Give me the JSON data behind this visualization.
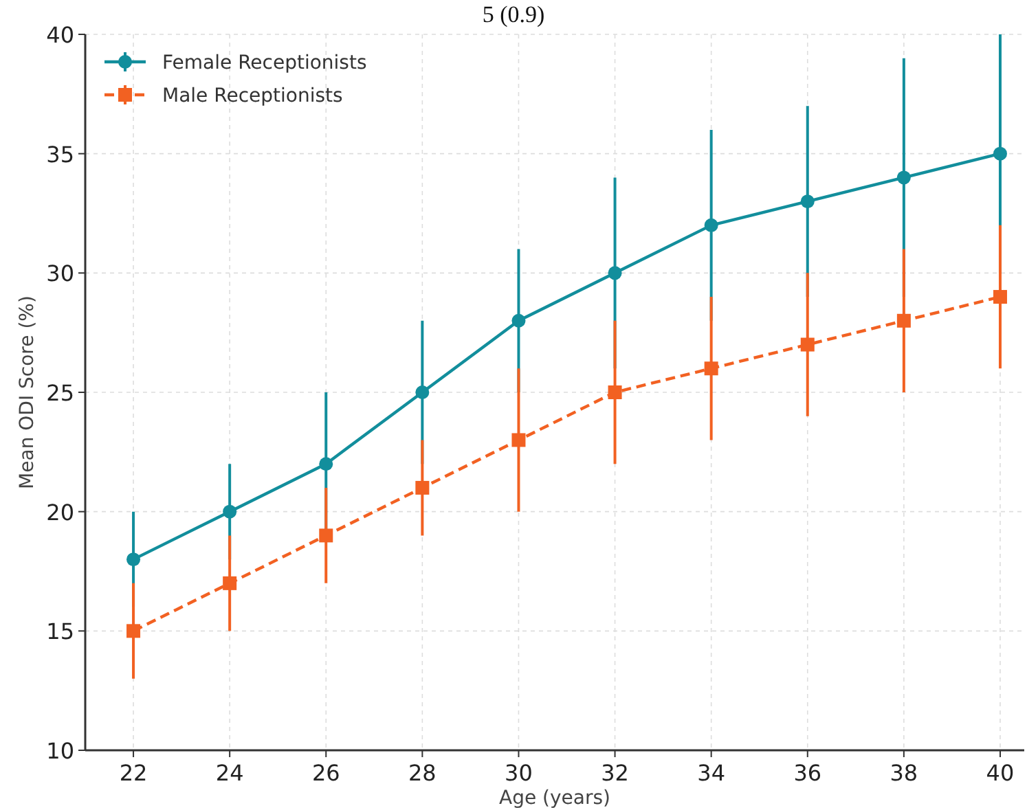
{
  "chart_data": {
    "type": "line",
    "xlabel": "Age (years)",
    "ylabel": "Mean ODI Score (%)",
    "annotations": [
      "5 (0.9)"
    ],
    "x": [
      22,
      24,
      26,
      28,
      30,
      32,
      34,
      36,
      38,
      40
    ],
    "series": [
      {
        "name": "Female Receptionists",
        "color": "#128e9c",
        "values": [
          18,
          20,
          22,
          25,
          28,
          30,
          32,
          33,
          34,
          35
        ],
        "errors": [
          2,
          2,
          3,
          3,
          3,
          4,
          4,
          4,
          5,
          5
        ],
        "marker": "circle",
        "line_style": "solid"
      },
      {
        "name": "Male Receptionists",
        "color": "#f26122",
        "values": [
          15,
          17,
          19,
          21,
          23,
          25,
          26,
          27,
          28,
          29
        ],
        "errors": [
          2,
          2,
          2,
          2,
          3,
          3,
          3,
          3,
          3,
          3
        ],
        "marker": "square",
        "line_style": "dashed"
      }
    ],
    "xlim": [
      21,
      40.5
    ],
    "ylim": [
      10,
      40
    ],
    "xticks": [
      22,
      24,
      26,
      28,
      30,
      32,
      34,
      36,
      38,
      40
    ],
    "yticks": [
      10,
      15,
      20,
      25,
      30,
      35,
      40
    ],
    "grid": true,
    "legend": "top left"
  }
}
